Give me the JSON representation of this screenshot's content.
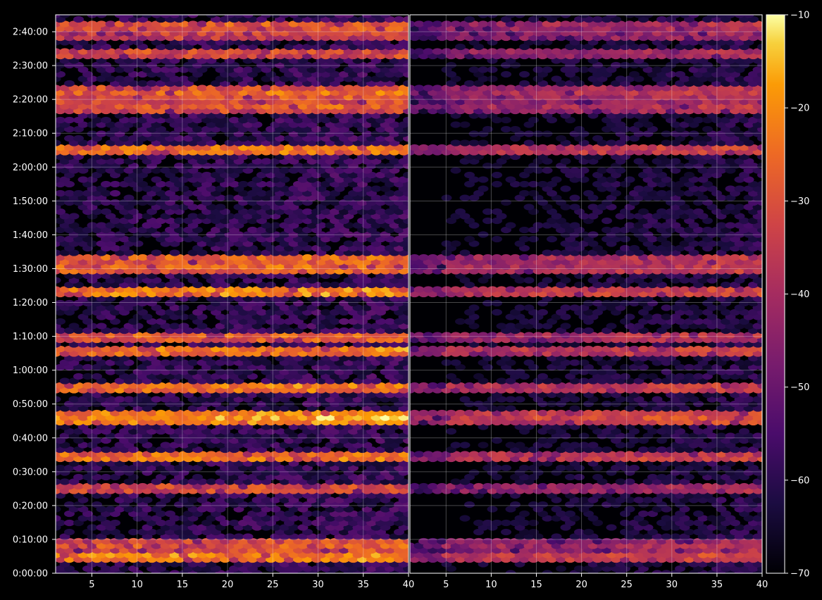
{
  "chart_data": {
    "type": "heatmap",
    "colormap": "inferno",
    "background": "#000000",
    "grid": true,
    "panels": [
      {
        "x_range": [
          1,
          40
        ],
        "x_ticks": [
          5,
          10,
          15,
          20,
          25,
          30,
          35,
          40
        ],
        "x_tick_labels": [
          "5",
          "10",
          "15",
          "20",
          "25",
          "30",
          "35",
          "40"
        ]
      },
      {
        "x_range": [
          1,
          40
        ],
        "x_ticks": [
          5,
          10,
          15,
          20,
          25,
          30,
          35,
          40
        ],
        "x_tick_labels": [
          "5",
          "10",
          "15",
          "20",
          "25",
          "30",
          "35",
          "40"
        ]
      }
    ],
    "y_range_seconds": [
      0,
      9900
    ],
    "y_ticks_seconds": [
      0,
      600,
      1200,
      1800,
      2400,
      3000,
      3600,
      4200,
      4800,
      5400,
      6000,
      6600,
      7200,
      7800,
      8400,
      9000,
      9600
    ],
    "y_tick_labels": [
      "0:00:00",
      "0:10:00",
      "0:20:00",
      "0:30:00",
      "0:40:00",
      "0:50:00",
      "1:00:00",
      "1:10:00",
      "1:20:00",
      "1:30:00",
      "1:40:00",
      "1:50:00",
      "2:00:00",
      "2:10:00",
      "2:20:00",
      "2:30:00",
      "2:40:00"
    ],
    "colorbar": {
      "range": [
        -70,
        -10
      ],
      "ticks": [
        -70,
        -60,
        -50,
        -40,
        -30,
        -20,
        -10
      ],
      "tick_labels": [
        "−70",
        "−60",
        "−50",
        "−40",
        "−30",
        "−20",
        "−10"
      ]
    },
    "bright_bands": [
      {
        "time_s": 300,
        "level": -22
      },
      {
        "time_s": 480,
        "level": -30
      },
      {
        "time_s": 1500,
        "level": -32
      },
      {
        "time_s": 2040,
        "level": -24
      },
      {
        "time_s": 2100,
        "level": -26
      },
      {
        "time_s": 2760,
        "level": -20
      },
      {
        "time_s": 3300,
        "level": -24
      },
      {
        "time_s": 3960,
        "level": -24
      },
      {
        "time_s": 4200,
        "level": -28
      },
      {
        "time_s": 4980,
        "level": -22
      },
      {
        "time_s": 5400,
        "level": -26
      },
      {
        "time_s": 5580,
        "level": -28
      },
      {
        "time_s": 7500,
        "level": -24
      },
      {
        "time_s": 8280,
        "level": -30
      },
      {
        "time_s": 8520,
        "level": -28
      },
      {
        "time_s": 9240,
        "level": -32
      },
      {
        "time_s": 9540,
        "level": -34
      },
      {
        "time_s": 9720,
        "level": -30
      }
    ]
  }
}
